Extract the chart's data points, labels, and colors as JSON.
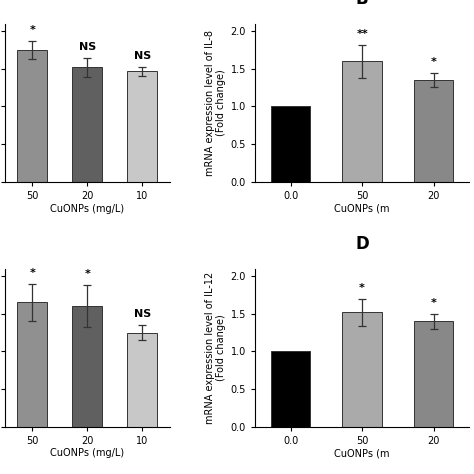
{
  "panel_A": {
    "bars": [
      {
        "label": "50",
        "value": 1.75,
        "err": 0.12,
        "color": "#909090",
        "sig": "*"
      },
      {
        "label": "20",
        "value": 1.52,
        "err": 0.13,
        "color": "#606060",
        "sig": "NS"
      },
      {
        "label": "10",
        "value": 1.47,
        "err": 0.06,
        "color": "#c8c8c8",
        "sig": "NS"
      }
    ],
    "xlabel": "CuONPs (mg/L)",
    "ylabel": "",
    "show_yticklabels": false,
    "ylim": [
      0,
      2.1
    ],
    "yticks": [
      0.0,
      0.5,
      1.0,
      1.5,
      2.0
    ],
    "panel_label": ""
  },
  "panel_B": {
    "bars": [
      {
        "label": "0.0",
        "value": 1.0,
        "err": 0.0,
        "color": "#000000",
        "sig": ""
      },
      {
        "label": "50",
        "value": 1.6,
        "err": 0.22,
        "color": "#aaaaaa",
        "sig": "**"
      },
      {
        "label": "20",
        "value": 1.35,
        "err": 0.09,
        "color": "#888888",
        "sig": "*"
      }
    ],
    "xlabel": "CuONPs (m",
    "ylabel": "mRNA expression level of IL-8\n(Fold change)",
    "show_yticklabels": true,
    "ylim": [
      0,
      2.1
    ],
    "yticks": [
      0.0,
      0.5,
      1.0,
      1.5,
      2.0
    ],
    "panel_label": "B"
  },
  "panel_C": {
    "bars": [
      {
        "label": "50",
        "value": 1.65,
        "err": 0.25,
        "color": "#909090",
        "sig": "*"
      },
      {
        "label": "20",
        "value": 1.6,
        "err": 0.28,
        "color": "#606060",
        "sig": "*"
      },
      {
        "label": "10",
        "value": 1.25,
        "err": 0.1,
        "color": "#c8c8c8",
        "sig": "NS"
      }
    ],
    "xlabel": "CuONPs (mg/L)",
    "ylabel": "",
    "show_yticklabels": false,
    "ylim": [
      0,
      2.1
    ],
    "yticks": [
      0.0,
      0.5,
      1.0,
      1.5,
      2.0
    ],
    "panel_label": ""
  },
  "panel_D": {
    "bars": [
      {
        "label": "0.0",
        "value": 1.0,
        "err": 0.0,
        "color": "#000000",
        "sig": ""
      },
      {
        "label": "50",
        "value": 1.52,
        "err": 0.18,
        "color": "#aaaaaa",
        "sig": "*"
      },
      {
        "label": "20",
        "value": 1.4,
        "err": 0.1,
        "color": "#888888",
        "sig": "*"
      }
    ],
    "xlabel": "CuONPs (m",
    "ylabel": "mRNA expression level of IL-12\n(Fold change)",
    "show_yticklabels": true,
    "ylim": [
      0,
      2.1
    ],
    "yticks": [
      0.0,
      0.5,
      1.0,
      1.5,
      2.0
    ],
    "panel_label": "D"
  },
  "background_color": "#ffffff",
  "tick_fontsize": 7,
  "label_fontsize": 7,
  "sig_fontsize": 8,
  "panel_label_fontsize": 12
}
